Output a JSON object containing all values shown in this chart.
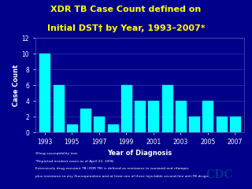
{
  "years": [
    1993,
    1994,
    1995,
    1996,
    1997,
    1998,
    1999,
    2000,
    2001,
    2002,
    2003,
    2004,
    2005,
    2006,
    2007
  ],
  "values": [
    10,
    6,
    1,
    3,
    2,
    1,
    6,
    4,
    4,
    6,
    4,
    2,
    4,
    2,
    2
  ],
  "bar_color": "#00FFFF",
  "background_color": "#00008B",
  "title_line1": "XDR TB Case Count defined on",
  "title_line2": "Initial DST† by Year, 1993–2007*",
  "xlabel": "Year of Diagnosis",
  "ylabel": "Case Count",
  "ylim": [
    0,
    12
  ],
  "yticks": [
    0,
    2,
    4,
    6,
    8,
    10,
    12
  ],
  "xtick_positions": [
    1993,
    1995,
    1997,
    1999,
    2001,
    2003,
    2005,
    2007
  ],
  "xtick_labels": [
    "1993",
    "1995",
    "1997",
    "1999",
    "2001",
    "2003",
    "2005",
    "2007"
  ],
  "title_color": "#FFFF00",
  "axis_text_color": "#FFFFFF",
  "grid_color": "#3333AA",
  "footnote1": "†Drug susceptibility test.",
  "footnote2": "*Reported incident cases as of April 23, 2008.",
  "footnote3": "Extensively drug-resistant TB (XDR TB) is defined as resistance to isoniazid and rifampin,",
  "footnote4": "plus resistance to any fluoroquinolone and at least one of three injectable second-line anti-TB drugs."
}
